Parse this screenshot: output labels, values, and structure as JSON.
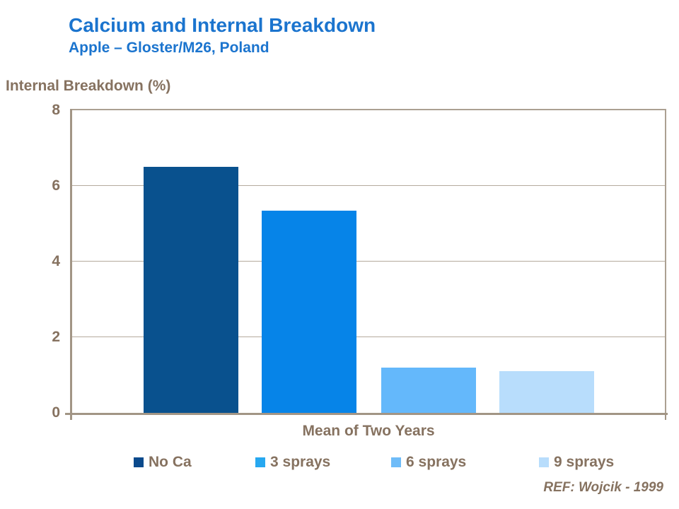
{
  "slide": {
    "title": "Calcium and Internal Breakdown",
    "subtitle": "Apple – Gloster/M26, Poland",
    "reference": "REF: Wojcik - 1999"
  },
  "colors": {
    "title_blue": "#1B74CE",
    "text_taupe": "#867260",
    "gridline": "#B5AA9D",
    "axis_line": "#A29585",
    "frame_line": "#ABA092"
  },
  "chart_data": {
    "type": "bar",
    "title": "Internal Breakdown (%)",
    "ylabel": "Internal Breakdown (%)",
    "xlabel": "Mean of Two Years",
    "categories": [
      "Mean of Two Years"
    ],
    "series": [
      {
        "name": "No Ca",
        "values": [
          6.5
        ],
        "color": "#09518E",
        "legend_color": "#0B4A8C"
      },
      {
        "name": "3 sprays",
        "values": [
          5.35
        ],
        "color": "#0684E8",
        "legend_color": "#27A8F0"
      },
      {
        "name": "6 sprays",
        "values": [
          1.2
        ],
        "color": "#64B8FB",
        "legend_color": "#6FBCF8"
      },
      {
        "name": "9 sprays",
        "values": [
          1.1
        ],
        "color": "#B8DDFC",
        "legend_color": "#B8DDFC"
      }
    ],
    "ylim": [
      0,
      8
    ],
    "yticks": [
      0,
      2,
      4,
      6,
      8
    ],
    "grid": true,
    "legend_position": "bottom"
  }
}
